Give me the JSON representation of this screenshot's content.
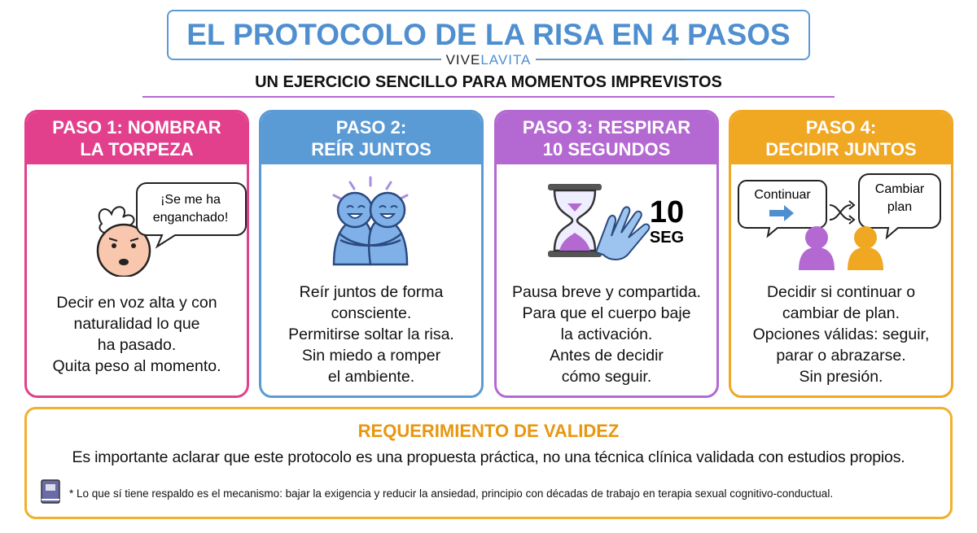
{
  "header": {
    "title": "EL PROTOCOLO DE LA RISA EN 4 PASOS",
    "brand": [
      "VIVE",
      "LAVITA"
    ],
    "subtitle": "UN EJERCICIO SENCILLO PARA MOMENTOS IMPREVISTOS"
  },
  "steps": [
    {
      "color": "#e2408c",
      "title": [
        "PASO 1: NOMBRAR",
        "LA TORPEZA"
      ],
      "illustration": [
        "¡Se me ha",
        "enganchado!"
      ],
      "body": [
        "Decir en voz alta y con",
        "naturalidad lo que",
        "ha pasado.",
        "Quita peso al momento."
      ]
    },
    {
      "color": "#5b9bd5",
      "title": [
        "PASO 2:",
        "REÍR JUNTOS"
      ],
      "illustration": [],
      "body": [
        "Reír juntos de forma",
        "consciente.",
        "Permitirse soltar la risa.",
        "Sin miedo a romper",
        "el ambiente."
      ]
    },
    {
      "color": "#b469d2",
      "title": [
        "PASO 3: RESPIRAR",
        "10 SEGUNDOS"
      ],
      "illustration": [
        "10",
        "SEG"
      ],
      "body": [
        "Pausa breve y compartida.",
        "Para que el cuerpo baje",
        "la activación.",
        "Antes de decidir",
        "cómo seguir."
      ]
    },
    {
      "color": "#f0a722",
      "title": [
        "PASO 4:",
        "DECIDIR JUNTOS"
      ],
      "illustration": [
        "Continuar",
        "Cambiar",
        "plan"
      ],
      "body": [
        "Decidir si continuar o",
        "cambiar de plan.",
        "Opciones válidas: seguir,",
        "parar o abrazarse.",
        "Sin presión."
      ]
    }
  ],
  "footer": {
    "title": "REQUERIMIENTO DE VALIDEZ",
    "text": "Es importante aclarar que este protocolo es una propuesta práctica, no una técnica clínica validada con estudios propios.",
    "note": "* Lo que sí tiene respaldo es el mecanismo: bajar la exigencia y reducir la ansiedad, principio con décadas de trabajo en terapia sexual cognitivo-conductual."
  }
}
